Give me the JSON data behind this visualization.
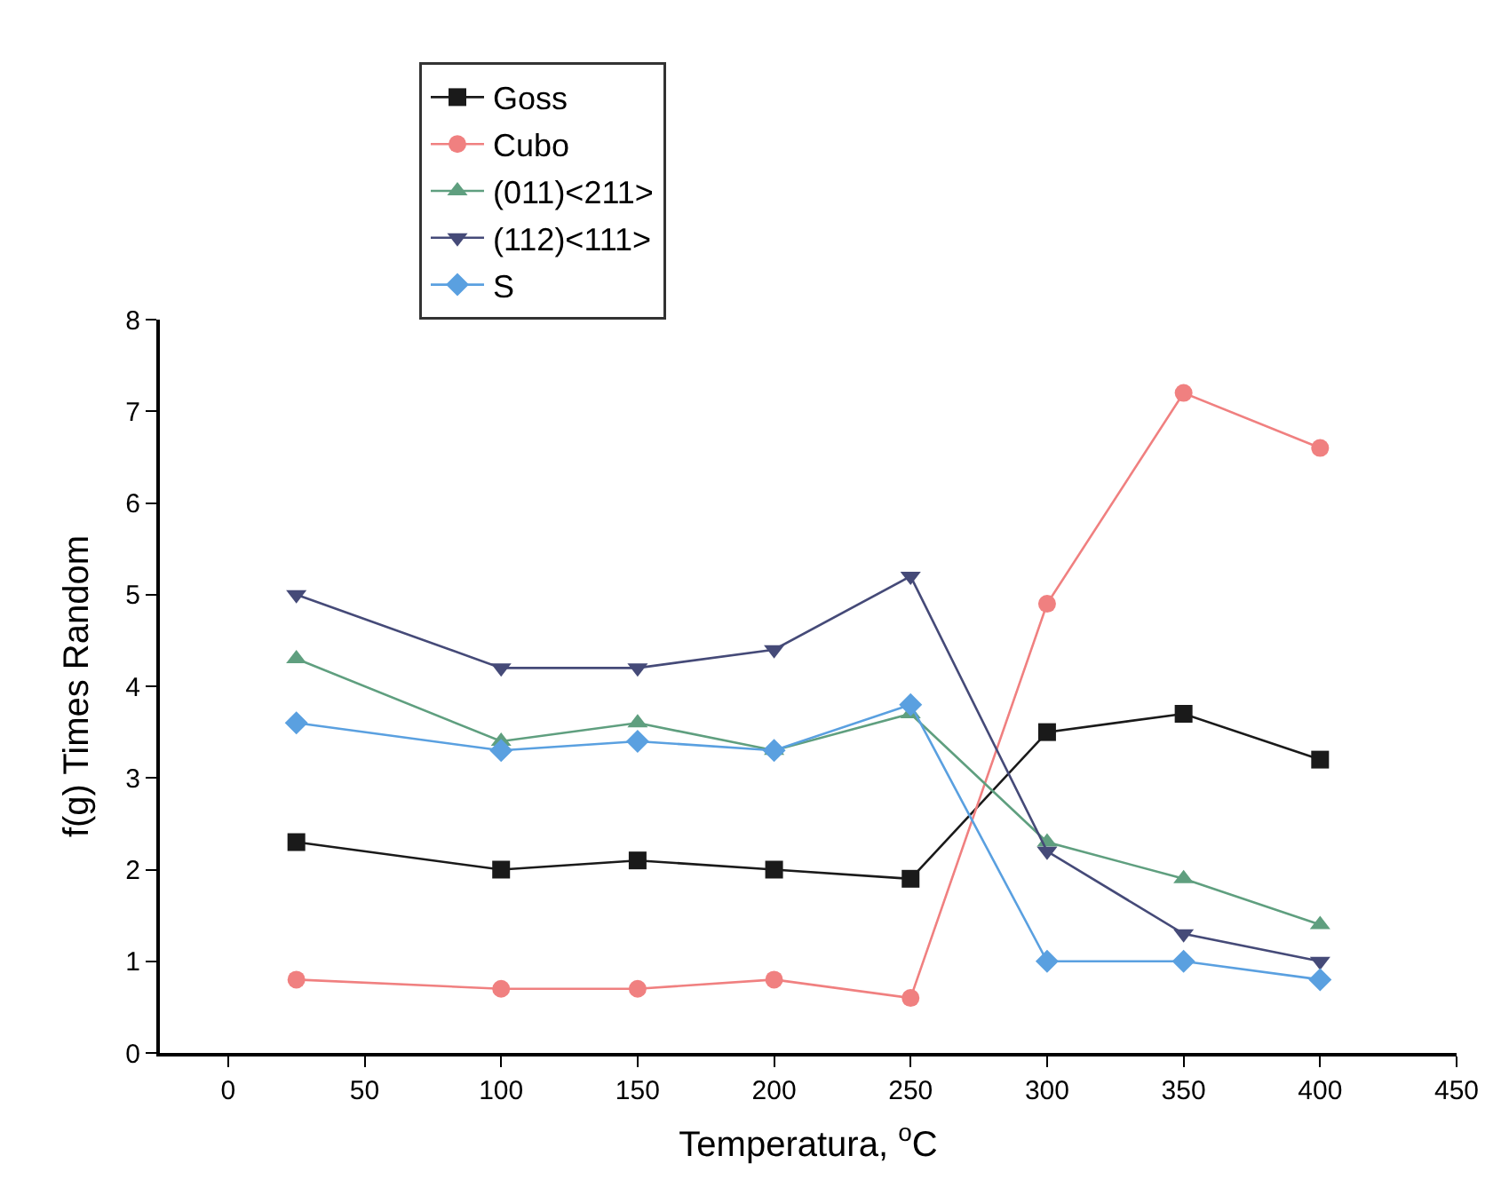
{
  "chart_data": {
    "type": "line",
    "xlabel": "Temperatura, $^{o}$C",
    "ylabel": "f(g) Times Random",
    "x": [
      25,
      100,
      150,
      200,
      250,
      300,
      350,
      400
    ],
    "series": [
      {
        "name": "Goss",
        "color": "#1a1a1a",
        "marker": "square",
        "values": [
          2.3,
          2.0,
          2.1,
          2.0,
          1.9,
          3.5,
          3.7,
          3.2
        ]
      },
      {
        "name": "Cubo",
        "color": "#f08080",
        "marker": "circle",
        "values": [
          0.8,
          0.7,
          0.7,
          0.8,
          0.6,
          4.9,
          7.2,
          6.6
        ]
      },
      {
        "name": "(011)<211>",
        "color": "#5f9f7f",
        "marker": "triangle",
        "values": [
          4.3,
          3.4,
          3.6,
          3.3,
          3.7,
          2.3,
          1.9,
          1.4
        ]
      },
      {
        "name": "(112)<111>",
        "color": "#454a78",
        "marker": "triangle-down",
        "values": [
          5.0,
          4.2,
          4.2,
          4.4,
          5.2,
          2.2,
          1.3,
          1.0
        ]
      },
      {
        "name": "S",
        "color": "#5aa0e0",
        "marker": "diamond",
        "values": [
          3.6,
          3.3,
          3.4,
          3.3,
          3.8,
          1.0,
          1.0,
          0.8
        ]
      }
    ],
    "xlim": [
      -25,
      450
    ],
    "xticks": [
      0,
      50,
      100,
      150,
      200,
      250,
      300,
      350,
      400,
      450
    ],
    "ylim": [
      0,
      8
    ],
    "yticks": [
      0,
      1,
      2,
      3,
      4,
      5,
      6,
      7,
      8
    ],
    "legend": "top left"
  }
}
